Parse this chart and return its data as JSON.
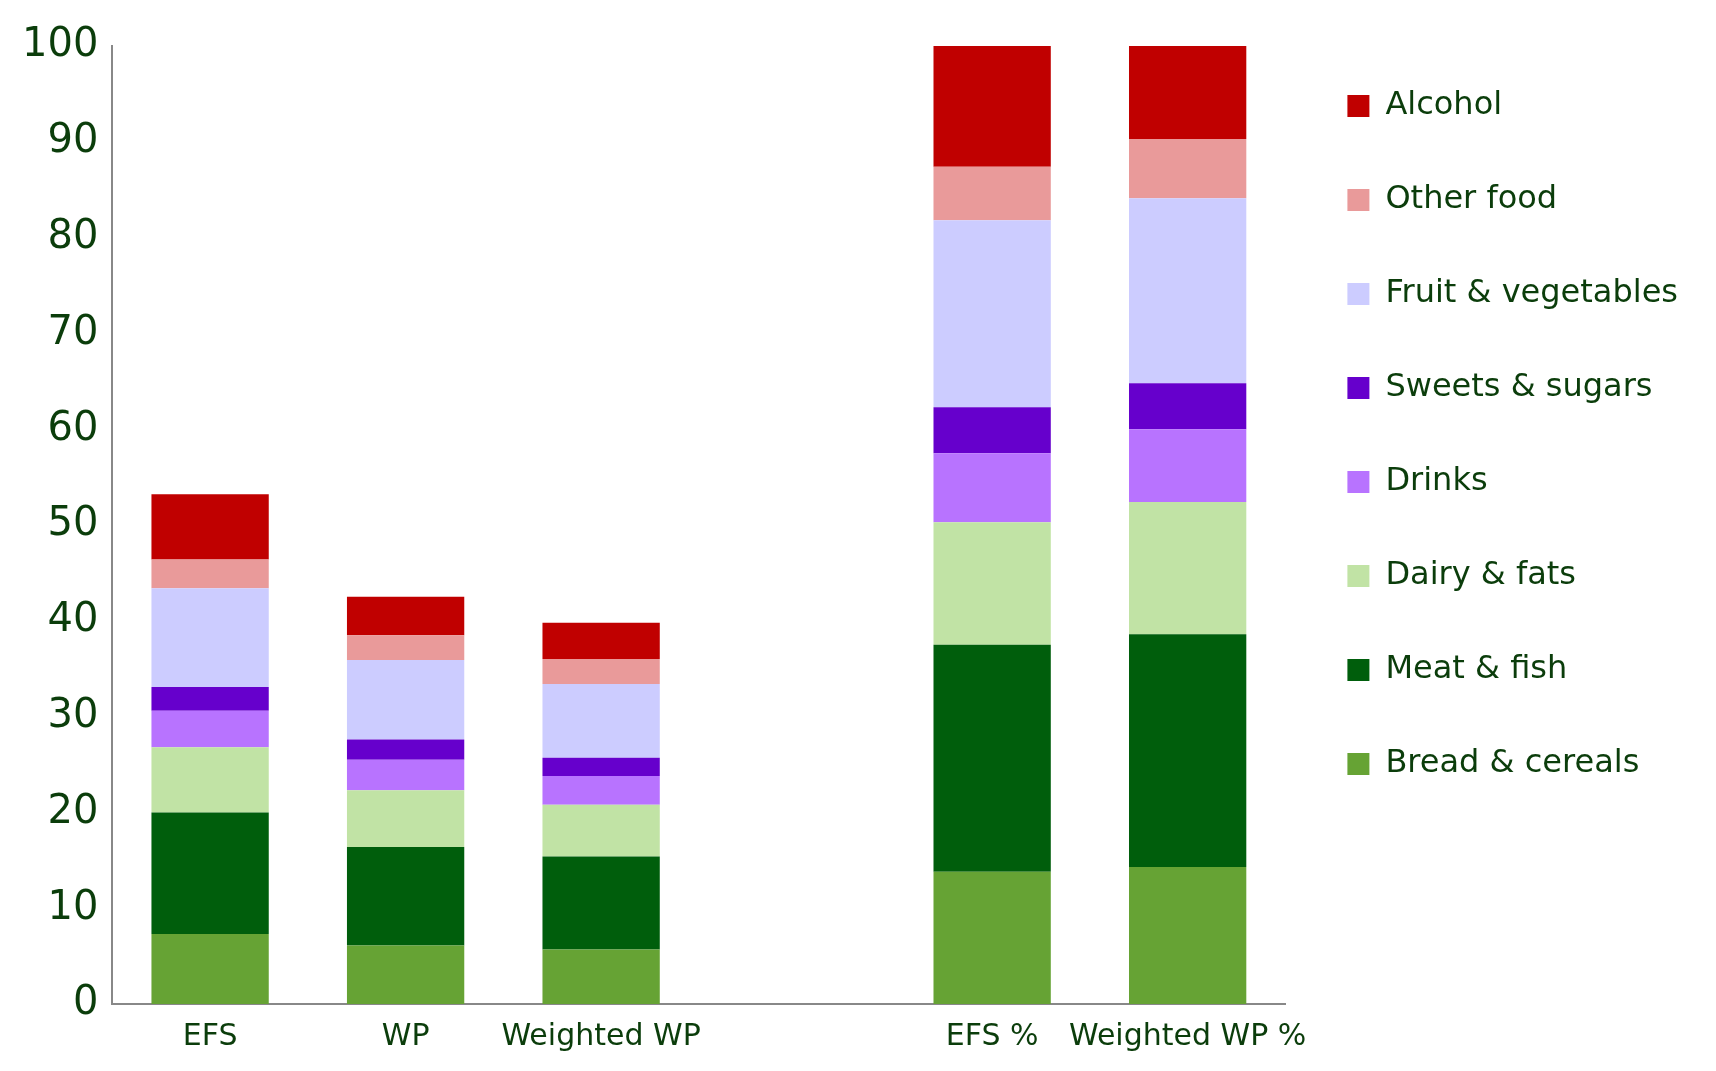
{
  "chart_data": {
    "type": "bar",
    "stacked": true,
    "categories": [
      "EFS",
      "WP",
      "Weighted WP",
      null,
      "EFS %",
      "Weighted WP %"
    ],
    "ylim": [
      0,
      100
    ],
    "yticks": [
      0,
      10,
      20,
      30,
      40,
      50,
      60,
      70,
      80,
      90,
      100
    ],
    "grid": false,
    "legend": "right",
    "series": [
      {
        "name": "Bread & cereals",
        "color": "#66a334",
        "values": [
          7.3,
          6.1,
          5.7,
          null,
          13.8,
          14.3
        ]
      },
      {
        "name": "Meat & fish",
        "color": "#005e0c",
        "values": [
          12.7,
          10.3,
          9.7,
          null,
          23.7,
          24.3
        ]
      },
      {
        "name": "Dairy & fats",
        "color": "#c1e3a5",
        "values": [
          6.8,
          5.9,
          5.4,
          null,
          12.8,
          13.8
        ]
      },
      {
        "name": "Drinks",
        "color": "#b873ff",
        "values": [
          3.8,
          3.2,
          3.0,
          null,
          7.2,
          7.6
        ]
      },
      {
        "name": "Sweets & sugars",
        "color": "#6600cc",
        "values": [
          2.5,
          2.1,
          1.9,
          null,
          4.8,
          4.8
        ]
      },
      {
        "name": "Fruit & vegetables",
        "color": "#ccccff",
        "values": [
          10.3,
          8.3,
          7.7,
          null,
          19.5,
          19.3
        ]
      },
      {
        "name": "Other food",
        "color": "#e99a9a",
        "values": [
          3.0,
          2.6,
          2.6,
          null,
          5.6,
          6.2
        ]
      },
      {
        "name": "Alcohol",
        "color": "#c00000",
        "values": [
          6.8,
          4.0,
          3.8,
          null,
          12.6,
          9.7
        ]
      }
    ]
  }
}
